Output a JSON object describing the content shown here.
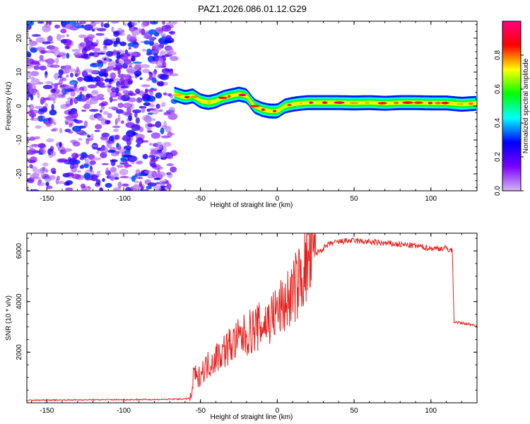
{
  "title": "PAZ1.2026.086.01.12.G29",
  "chart_data": [
    {
      "type": "heatmap",
      "name": "spectrogram",
      "xlabel": "Height of straight line (km)",
      "ylabel": "Frequency (Hz)",
      "xlim": [
        -163,
        130
      ],
      "ylim": [
        -25,
        25
      ],
      "xticks": [
        -150,
        -100,
        -50,
        0,
        50,
        100
      ],
      "yticks": [
        -20,
        -10,
        0,
        10,
        20
      ],
      "noise_region": {
        "x": [
          -163,
          -67
        ],
        "amplitude": [
          0.05,
          0.35
        ]
      },
      "ridge": {
        "x": [
          -67,
          -60,
          -55,
          -50,
          -45,
          -40,
          -35,
          -30,
          -25,
          -20,
          -15,
          -10,
          -5,
          0,
          5,
          10,
          15,
          20,
          30,
          40,
          50,
          60,
          70,
          80,
          90,
          100,
          110,
          120,
          130
        ],
        "freq": [
          3.5,
          2.5,
          3,
          1.5,
          1,
          1.5,
          2.5,
          3,
          3.5,
          3,
          0,
          -1,
          -1.5,
          -1.5,
          0,
          0.5,
          0.8,
          1,
          1,
          1,
          0.9,
          1,
          0.8,
          1,
          1,
          0.9,
          0.9,
          0.5,
          0.8
        ]
      },
      "colorbar": {
        "label": "Normalized spectral amplitude",
        "range": [
          0,
          1
        ],
        "ticks": [
          "0.0",
          "0.2",
          "0.4",
          "0.6",
          "0.8"
        ],
        "tick_values": [
          0,
          0.2,
          0.4,
          0.6,
          0.8
        ],
        "colors": [
          "#d6b6f5",
          "#7a00ff",
          "#0000ff",
          "#00ffff",
          "#00ff00",
          "#ffff00",
          "#ff0000",
          "#ff0080"
        ]
      }
    },
    {
      "type": "line",
      "name": "snr",
      "xlabel": "Height of straight line (km)",
      "ylabel": "SNR (10 * v/v)",
      "xlim": [
        -163,
        130
      ],
      "ylim": [
        0,
        6700
      ],
      "xticks": [
        -150,
        -100,
        -50,
        0,
        50,
        100
      ],
      "yticks": [
        2000,
        4000,
        6000
      ],
      "color": "#e8201c",
      "series": [
        {
          "name": "SNR",
          "x": [
            -163,
            -120,
            -80,
            -60,
            -56,
            -54,
            -52,
            -50,
            -45,
            -40,
            -35,
            -30,
            -25,
            -20,
            -15,
            -10,
            -5,
            0,
            5,
            10,
            15,
            20,
            25,
            30,
            35,
            40,
            45,
            50,
            60,
            70,
            80,
            90,
            100,
            110,
            114,
            115,
            120,
            130
          ],
          "y": [
            100,
            120,
            130,
            150,
            200,
            1300,
            800,
            1200,
            1500,
            1800,
            2050,
            2300,
            2500,
            2700,
            2900,
            3050,
            3300,
            3600,
            3900,
            4350,
            4900,
            5500,
            5900,
            6100,
            6300,
            6350,
            6400,
            6400,
            6350,
            6300,
            6250,
            6200,
            6100,
            6100,
            6000,
            3200,
            3150,
            3050
          ]
        }
      ]
    }
  ]
}
